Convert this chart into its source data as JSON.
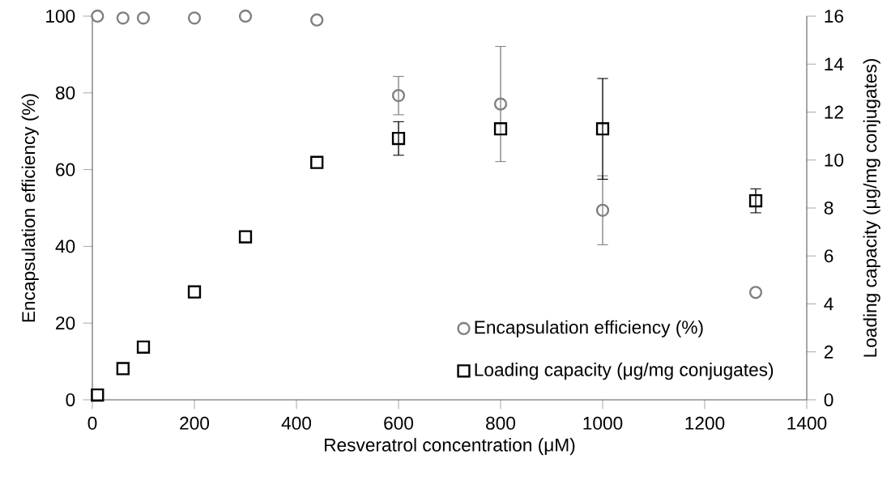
{
  "chart_data": {
    "type": "scatter",
    "xlabel": "Resveratrol concentration (μM)",
    "ylabel": "Encapsulation efficiency (%)",
    "y2label": "Loading capacity (μg/mg conjugates)",
    "x": [
      10,
      60,
      100,
      200,
      300,
      440,
      600,
      800,
      1000,
      1300
    ],
    "series": [
      {
        "name": "Encapsulation efficiency (%)",
        "color": "#808080",
        "marker": "circle",
        "axis": "y",
        "values": [
          100,
          99.5,
          99.5,
          99.5,
          100,
          99,
          79.3,
          77.1,
          49.4,
          28
        ],
        "errors": [
          null,
          null,
          null,
          null,
          null,
          null,
          5,
          15,
          9,
          null
        ]
      },
      {
        "name": "Loading capacity (μg/mg conjugates)",
        "color": "#000000",
        "marker": "square",
        "axis": "y2",
        "values": [
          0.2,
          1.3,
          2.2,
          4.5,
          6.8,
          9.9,
          10.9,
          11.3,
          11.3,
          8.3
        ],
        "errors": [
          null,
          null,
          null,
          null,
          null,
          null,
          0.7,
          null,
          2.1,
          0.5
        ]
      }
    ],
    "xlim": [
      0,
      1400
    ],
    "xticks": [
      0,
      200,
      400,
      600,
      800,
      1000,
      1200,
      1400
    ],
    "ylim": [
      0,
      100
    ],
    "yticks": [
      0,
      20,
      40,
      60,
      80,
      100
    ],
    "y2lim": [
      0,
      16
    ],
    "y2ticks": [
      0,
      2,
      4,
      6,
      8,
      10,
      12,
      14,
      16
    ],
    "legend": "bottom right",
    "grid": false
  }
}
